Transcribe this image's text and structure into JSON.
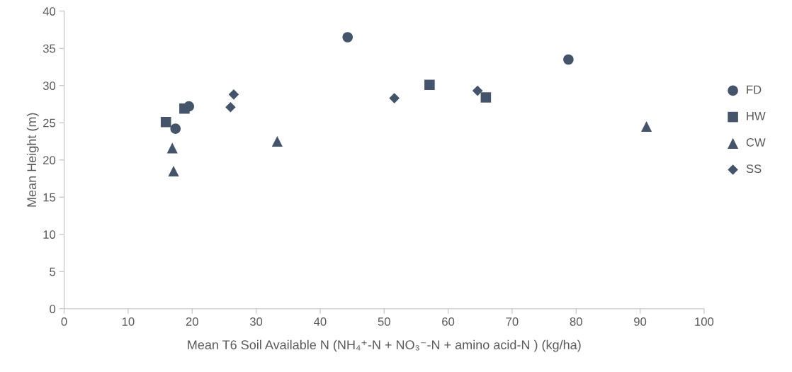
{
  "chart_data": {
    "type": "scatter",
    "xlabel": "Mean T6 Soil Available N (NH₄⁺-N + NO₃⁻-N + amino acid-N ) (kg/ha)",
    "ylabel": "Mean Height (m)",
    "xlim": [
      0,
      100
    ],
    "xticks": [
      0,
      10,
      20,
      30,
      40,
      50,
      60,
      70,
      80,
      90,
      100
    ],
    "ylim": [
      0,
      40
    ],
    "yticks": [
      0,
      5,
      10,
      15,
      20,
      25,
      30,
      35,
      40
    ],
    "grid": false,
    "legend": "right",
    "series": [
      {
        "name": "FD",
        "color": "#44546a",
        "marker": "circle",
        "x": [
          44.3,
          78.8,
          19.5,
          17.4
        ],
        "values": [
          36.5,
          33.5,
          27.2,
          24.2
        ]
      },
      {
        "name": "HW",
        "color": "#44546a",
        "marker": "square",
        "x": [
          15.9,
          18.8,
          57.1,
          65.9
        ],
        "values": [
          25.1,
          26.9,
          30.1,
          28.4
        ]
      },
      {
        "name": "CW",
        "color": "#44546a",
        "marker": "triangle",
        "x": [
          16.9,
          17.1,
          33.3,
          91.0
        ],
        "values": [
          21.6,
          18.5,
          22.5,
          24.5
        ]
      },
      {
        "name": "SS",
        "color": "#44546a",
        "marker": "diamond",
        "x": [
          26.0,
          26.5,
          51.6,
          64.6
        ],
        "values": [
          27.1,
          28.8,
          28.3,
          29.3
        ]
      }
    ]
  }
}
